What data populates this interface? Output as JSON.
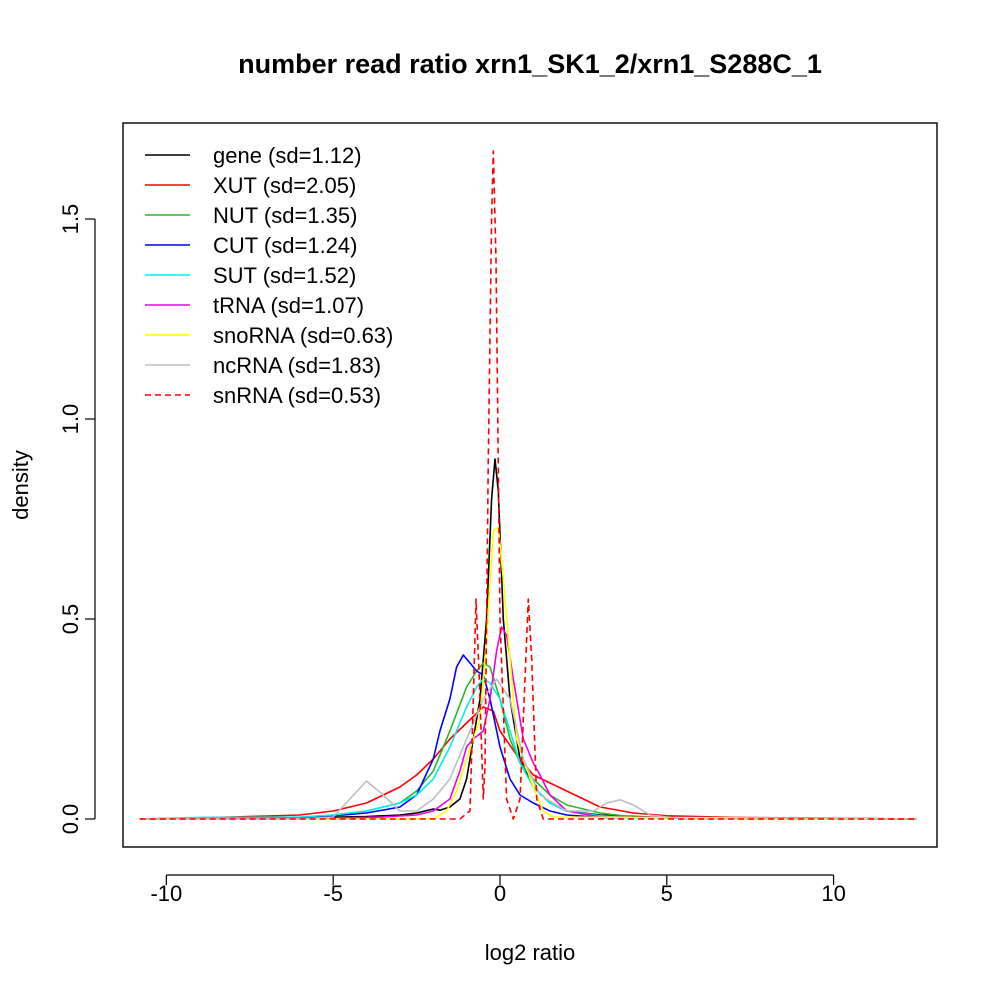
{
  "chart_data": {
    "type": "line",
    "title": "number read ratio xrn1_SK1_2/xrn1_S288C_1",
    "xlabel": "log2 ratio",
    "ylabel": "density",
    "xlim": [
      -11.3,
      13.1
    ],
    "ylim": [
      -0.07,
      1.74
    ],
    "xticks": [
      -10,
      -5,
      0,
      5,
      10
    ],
    "xtick_labels": [
      "-10",
      "-5",
      "0",
      "5",
      "10"
    ],
    "yticks": [
      0.0,
      0.5,
      1.0,
      1.5
    ],
    "ytick_labels": [
      "0.0",
      "0.5",
      "1.0",
      "1.5"
    ],
    "grid": false,
    "legend_position": "top-left",
    "series": [
      {
        "name": "gene (sd=1.12)",
        "color": "#000000",
        "dash": false,
        "points": [
          [
            -10.8,
            0
          ],
          [
            -6,
            0.003
          ],
          [
            -4,
            0.006
          ],
          [
            -3,
            0.01
          ],
          [
            -2.5,
            0.015
          ],
          [
            -2,
            0.025
          ],
          [
            -1.8,
            0.022
          ],
          [
            -1.5,
            0.03
          ],
          [
            -1.2,
            0.05
          ],
          [
            -1,
            0.1
          ],
          [
            -0.8,
            0.2
          ],
          [
            -0.6,
            0.3
          ],
          [
            -0.4,
            0.5
          ],
          [
            -0.25,
            0.8
          ],
          [
            -0.15,
            0.9
          ],
          [
            -0.05,
            0.82
          ],
          [
            0.1,
            0.5
          ],
          [
            0.3,
            0.3
          ],
          [
            0.6,
            0.15
          ],
          [
            1,
            0.08
          ],
          [
            1.5,
            0.04
          ],
          [
            2,
            0.02
          ],
          [
            3,
            0.01
          ],
          [
            5,
            0.003
          ],
          [
            12.5,
            0
          ]
        ]
      },
      {
        "name": "XUT (sd=2.05)",
        "color": "#ff0000",
        "dash": false,
        "points": [
          [
            -10.8,
            0
          ],
          [
            -8,
            0.005
          ],
          [
            -6,
            0.01
          ],
          [
            -5,
            0.02
          ],
          [
            -4,
            0.04
          ],
          [
            -3,
            0.08
          ],
          [
            -2.5,
            0.11
          ],
          [
            -2,
            0.15
          ],
          [
            -1.5,
            0.2
          ],
          [
            -1,
            0.24
          ],
          [
            -0.5,
            0.28
          ],
          [
            -0.2,
            0.27
          ],
          [
            0,
            0.22
          ],
          [
            0.5,
            0.16
          ],
          [
            1,
            0.11
          ],
          [
            1.5,
            0.09
          ],
          [
            2,
            0.07
          ],
          [
            2.5,
            0.05
          ],
          [
            3,
            0.03
          ],
          [
            4,
            0.015
          ],
          [
            5,
            0.008
          ],
          [
            7,
            0.004
          ],
          [
            10,
            0.002
          ],
          [
            12.5,
            0
          ]
        ]
      },
      {
        "name": "NUT (sd=1.35)",
        "color": "#22bb22",
        "dash": false,
        "points": [
          [
            -10.8,
            0
          ],
          [
            -6,
            0.004
          ],
          [
            -5,
            0.01
          ],
          [
            -4,
            0.02
          ],
          [
            -3,
            0.04
          ],
          [
            -2.5,
            0.07
          ],
          [
            -2,
            0.12
          ],
          [
            -1.5,
            0.22
          ],
          [
            -1,
            0.33
          ],
          [
            -0.7,
            0.37
          ],
          [
            -0.5,
            0.39
          ],
          [
            -0.3,
            0.38
          ],
          [
            0,
            0.3
          ],
          [
            0.3,
            0.2
          ],
          [
            0.6,
            0.14
          ],
          [
            1,
            0.1
          ],
          [
            1.5,
            0.06
          ],
          [
            2,
            0.035
          ],
          [
            3,
            0.015
          ],
          [
            4,
            0.005
          ],
          [
            12.5,
            0
          ]
        ]
      },
      {
        "name": "CUT (sd=1.24)",
        "color": "#0000ff",
        "dash": false,
        "points": [
          [
            -10.8,
            0
          ],
          [
            -6,
            0.003
          ],
          [
            -5,
            0.008
          ],
          [
            -4,
            0.015
          ],
          [
            -3,
            0.03
          ],
          [
            -2.5,
            0.06
          ],
          [
            -2,
            0.15
          ],
          [
            -1.8,
            0.22
          ],
          [
            -1.5,
            0.3
          ],
          [
            -1.3,
            0.38
          ],
          [
            -1.1,
            0.41
          ],
          [
            -0.9,
            0.39
          ],
          [
            -0.7,
            0.37
          ],
          [
            -0.5,
            0.36
          ],
          [
            -0.3,
            0.3
          ],
          [
            0,
            0.18
          ],
          [
            0.3,
            0.1
          ],
          [
            0.6,
            0.06
          ],
          [
            1,
            0.04
          ],
          [
            1.5,
            0.02
          ],
          [
            2,
            0.01
          ],
          [
            3,
            0.004
          ],
          [
            12.5,
            0
          ]
        ]
      },
      {
        "name": "SUT (sd=1.52)",
        "color": "#00eeee",
        "dash": false,
        "points": [
          [
            -10.8,
            0
          ],
          [
            -9,
            0.004
          ],
          [
            -8,
            0.004
          ],
          [
            -6,
            0.005
          ],
          [
            -5,
            0.01
          ],
          [
            -4,
            0.02
          ],
          [
            -3,
            0.04
          ],
          [
            -2.5,
            0.06
          ],
          [
            -2,
            0.1
          ],
          [
            -1.5,
            0.18
          ],
          [
            -1,
            0.28
          ],
          [
            -0.7,
            0.33
          ],
          [
            -0.5,
            0.35
          ],
          [
            -0.3,
            0.34
          ],
          [
            0,
            0.3
          ],
          [
            0.3,
            0.22
          ],
          [
            0.6,
            0.14
          ],
          [
            1,
            0.08
          ],
          [
            1.5,
            0.04
          ],
          [
            2,
            0.02
          ],
          [
            3,
            0.008
          ],
          [
            4,
            0.003
          ],
          [
            12.5,
            0
          ]
        ]
      },
      {
        "name": "tRNA (sd=1.07)",
        "color": "#ee00ee",
        "dash": false,
        "points": [
          [
            -10.8,
            0
          ],
          [
            -5,
            0.002
          ],
          [
            -3.5,
            0.005
          ],
          [
            -2.5,
            0.01
          ],
          [
            -2,
            0.02
          ],
          [
            -1.5,
            0.05
          ],
          [
            -1.2,
            0.12
          ],
          [
            -1,
            0.18
          ],
          [
            -0.8,
            0.2
          ],
          [
            -0.5,
            0.22
          ],
          [
            -0.3,
            0.3
          ],
          [
            -0.1,
            0.42
          ],
          [
            0.05,
            0.48
          ],
          [
            0.2,
            0.46
          ],
          [
            0.4,
            0.35
          ],
          [
            0.7,
            0.2
          ],
          [
            1,
            0.14
          ],
          [
            1.2,
            0.11
          ],
          [
            1.5,
            0.06
          ],
          [
            2,
            0.02
          ],
          [
            3,
            0.005
          ],
          [
            12.5,
            0
          ]
        ]
      },
      {
        "name": "snoRNA (sd=0.63)",
        "color": "#ffff00",
        "dash": false,
        "points": [
          [
            -10.8,
            0
          ],
          [
            -2,
            0
          ],
          [
            -1.6,
            0.02
          ],
          [
            -1.3,
            0.07
          ],
          [
            -1,
            0.15
          ],
          [
            -0.8,
            0.2
          ],
          [
            -0.6,
            0.25
          ],
          [
            -0.4,
            0.45
          ],
          [
            -0.2,
            0.72
          ],
          [
            -0.05,
            0.73
          ],
          [
            0.1,
            0.6
          ],
          [
            0.3,
            0.4
          ],
          [
            0.5,
            0.2
          ],
          [
            0.7,
            0.15
          ],
          [
            1,
            0.08
          ],
          [
            1.3,
            0.02
          ],
          [
            1.6,
            0.005
          ],
          [
            12.5,
            0
          ]
        ]
      },
      {
        "name": "ncRNA (sd=1.83)",
        "color": "#bebebe",
        "dash": false,
        "points": [
          [
            -10.8,
            0
          ],
          [
            -6,
            0
          ],
          [
            -5,
            0.005
          ],
          [
            -4.5,
            0.05
          ],
          [
            -4,
            0.095
          ],
          [
            -3.5,
            0.06
          ],
          [
            -3,
            0.02
          ],
          [
            -2.5,
            0.02
          ],
          [
            -2,
            0.05
          ],
          [
            -1.5,
            0.1
          ],
          [
            -1,
            0.2
          ],
          [
            -0.5,
            0.3
          ],
          [
            -0.1,
            0.35
          ],
          [
            0.3,
            0.3
          ],
          [
            0.7,
            0.15
          ],
          [
            1.2,
            0.06
          ],
          [
            2,
            0.02
          ],
          [
            2.8,
            0.02
          ],
          [
            3.2,
            0.04
          ],
          [
            3.6,
            0.048
          ],
          [
            4,
            0.035
          ],
          [
            4.5,
            0.01
          ],
          [
            5.5,
            0
          ],
          [
            12.5,
            0
          ]
        ]
      },
      {
        "name": "snRNA (sd=0.53)",
        "color": "#ff0000",
        "dash": true,
        "points": [
          [
            -10.8,
            0
          ],
          [
            -1.2,
            0
          ],
          [
            -0.9,
            0.02
          ],
          [
            -0.8,
            0.3
          ],
          [
            -0.72,
            0.55
          ],
          [
            -0.62,
            0.35
          ],
          [
            -0.5,
            0.05
          ],
          [
            -0.45,
            0.13
          ],
          [
            -0.35,
            0.9
          ],
          [
            -0.25,
            1.5
          ],
          [
            -0.2,
            1.67
          ],
          [
            -0.12,
            1.4
          ],
          [
            0,
            0.5
          ],
          [
            0.2,
            0.05
          ],
          [
            0.4,
            0
          ],
          [
            0.6,
            0.05
          ],
          [
            0.75,
            0.35
          ],
          [
            0.85,
            0.55
          ],
          [
            0.95,
            0.4
          ],
          [
            1.1,
            0.05
          ],
          [
            1.3,
            0
          ],
          [
            12.5,
            0
          ]
        ]
      }
    ]
  }
}
